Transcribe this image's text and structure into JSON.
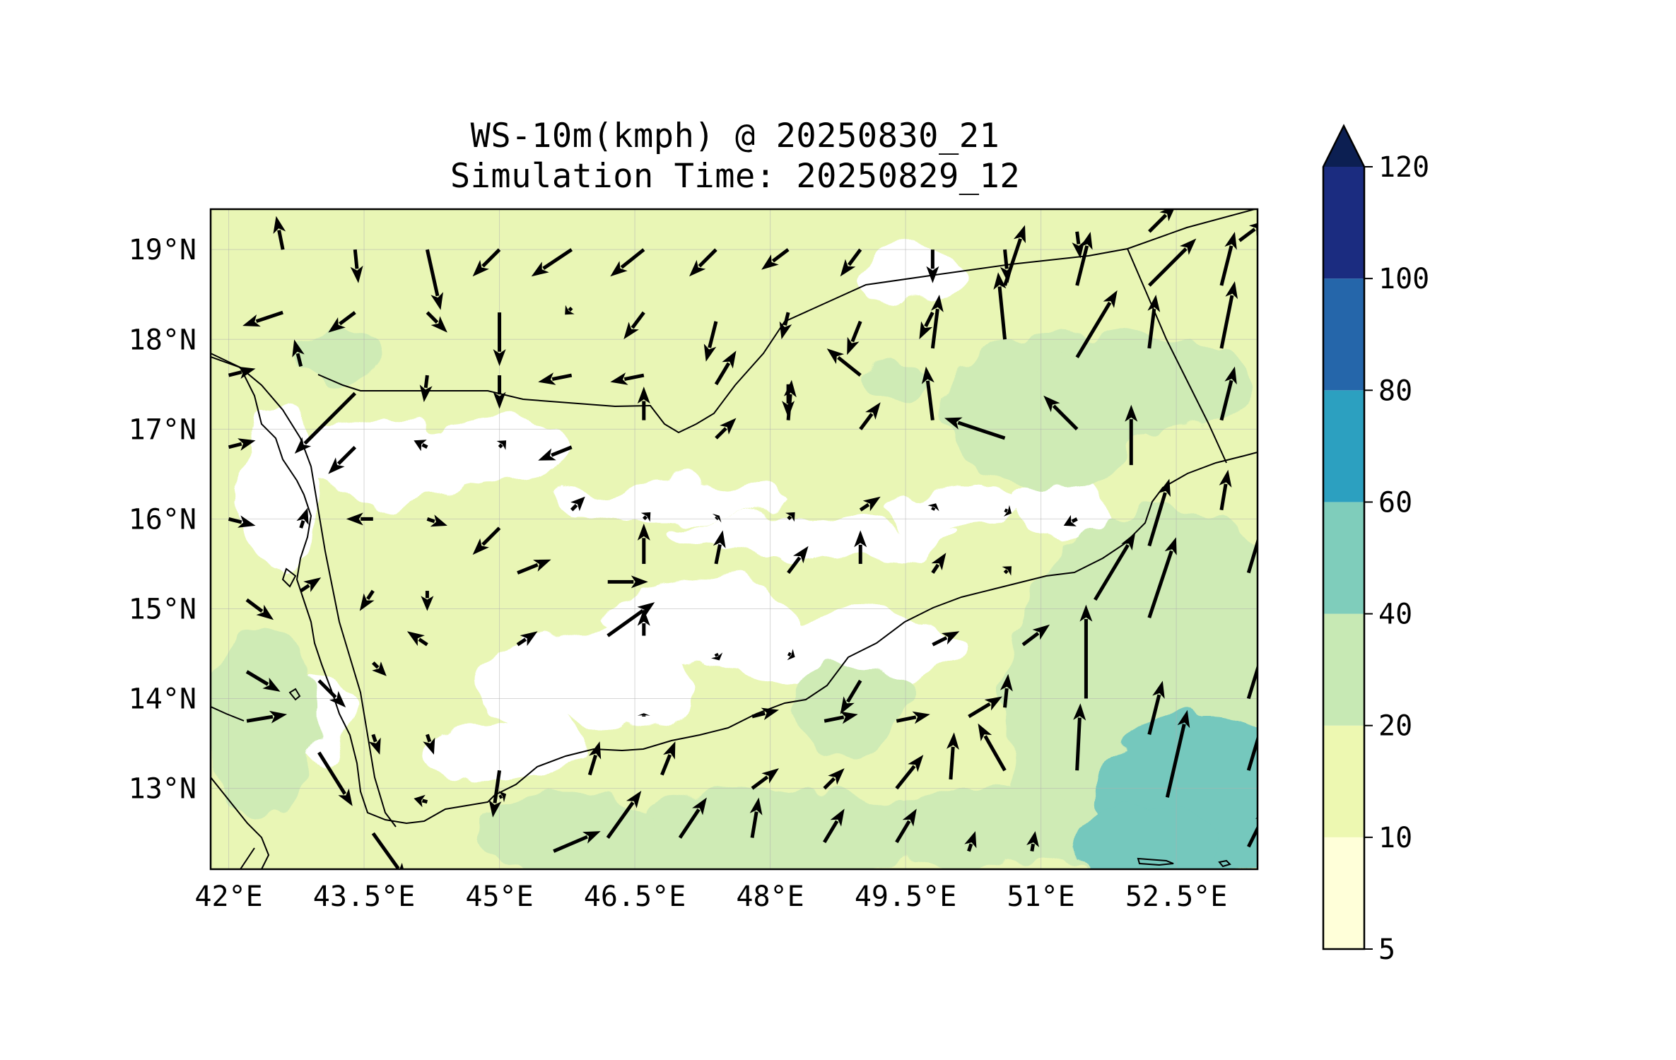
{
  "title": {
    "line1": "WS-10m(kmph) @ 20250830_21",
    "line2": "Simulation Time: 20250829_12"
  },
  "map": {
    "lon_range": [
      41.8,
      53.4
    ],
    "lat_range": [
      12.1,
      19.45
    ],
    "x_tick_labels": [
      {
        "value": 42.0,
        "label": "42°E"
      },
      {
        "value": 43.5,
        "label": "43.5°E"
      },
      {
        "value": 45.0,
        "label": "45°E"
      },
      {
        "value": 46.5,
        "label": "46.5°E"
      },
      {
        "value": 48.0,
        "label": "48°E"
      },
      {
        "value": 49.5,
        "label": "49.5°E"
      },
      {
        "value": 51.0,
        "label": "51°E"
      },
      {
        "value": 52.5,
        "label": "52.5°E"
      }
    ],
    "y_tick_labels": [
      {
        "value": 19,
        "label": "19°N"
      },
      {
        "value": 18,
        "label": "18°N"
      },
      {
        "value": 17,
        "label": "17°N"
      },
      {
        "value": 16,
        "label": "16°N"
      },
      {
        "value": 15,
        "label": "15°N"
      },
      {
        "value": 14,
        "label": "14°N"
      },
      {
        "value": 13,
        "label": "13°N"
      }
    ]
  },
  "colorbar": {
    "levels": [
      "5",
      "10",
      "20",
      "40",
      "60",
      "80",
      "100",
      "120"
    ],
    "colors": [
      "#ffffd9",
      "#edf8b1",
      "#c7e9b4",
      "#7fcdbb",
      "#2ca0c0",
      "#2566aa",
      "#1b2c80"
    ],
    "extend_color": "#0c1f52",
    "extend": "max"
  },
  "colors": {
    "land_light": "#f3fac6",
    "land_low": "#ffffff",
    "band_10_20": "#e9f6b5",
    "band_20_40": "#cfebb5",
    "band_40_60": "#74c8bd",
    "coast": "#000000",
    "arrow": "#000000"
  },
  "wind_vectors": [
    {
      "lon": 42.6,
      "lat": 19.0,
      "u": -0.1,
      "v": 0.5
    },
    {
      "lon": 43.4,
      "lat": 19.0,
      "u": 0.05,
      "v": -0.5
    },
    {
      "lon": 44.2,
      "lat": 19.0,
      "u": 0.2,
      "v": -0.9
    },
    {
      "lon": 45.0,
      "lat": 19.0,
      "u": -0.4,
      "v": -0.4
    },
    {
      "lon": 45.8,
      "lat": 19.0,
      "u": -0.6,
      "v": -0.4
    },
    {
      "lon": 46.6,
      "lat": 19.0,
      "u": -0.5,
      "v": -0.4
    },
    {
      "lon": 47.4,
      "lat": 19.0,
      "u": -0.4,
      "v": -0.4
    },
    {
      "lon": 48.2,
      "lat": 19.0,
      "u": -0.4,
      "v": -0.3
    },
    {
      "lon": 49.0,
      "lat": 19.0,
      "u": -0.3,
      "v": -0.4
    },
    {
      "lon": 49.8,
      "lat": 19.0,
      "u": 0.0,
      "v": -0.5
    },
    {
      "lon": 50.6,
      "lat": 19.0,
      "u": 0.05,
      "v": -0.5
    },
    {
      "lon": 51.4,
      "lat": 19.2,
      "u": 0.05,
      "v": -0.4
    },
    {
      "lon": 52.2,
      "lat": 19.2,
      "u": 0.4,
      "v": 0.4
    },
    {
      "lon": 53.2,
      "lat": 19.1,
      "u": 0.4,
      "v": 0.3
    },
    {
      "lon": 42.6,
      "lat": 18.3,
      "u": -0.6,
      "v": -0.2
    },
    {
      "lon": 43.4,
      "lat": 18.3,
      "u": -0.4,
      "v": -0.3
    },
    {
      "lon": 44.2,
      "lat": 18.3,
      "u": 0.3,
      "v": -0.3
    },
    {
      "lon": 45.0,
      "lat": 18.3,
      "u": 0.0,
      "v": -0.8
    },
    {
      "lon": 45.8,
      "lat": 18.35,
      "u": -0.1,
      "v": -0.1
    },
    {
      "lon": 46.6,
      "lat": 18.3,
      "u": -0.3,
      "v": -0.4
    },
    {
      "lon": 47.4,
      "lat": 18.2,
      "u": -0.15,
      "v": -0.6
    },
    {
      "lon": 48.2,
      "lat": 18.3,
      "u": -0.1,
      "v": -0.4
    },
    {
      "lon": 49.0,
      "lat": 18.2,
      "u": -0.2,
      "v": -0.5
    },
    {
      "lon": 49.8,
      "lat": 18.3,
      "u": -0.2,
      "v": -0.4
    },
    {
      "lon": 50.6,
      "lat": 18.6,
      "u": 0.3,
      "v": 0.9
    },
    {
      "lon": 51.4,
      "lat": 18.6,
      "u": 0.2,
      "v": 0.8
    },
    {
      "lon": 52.2,
      "lat": 18.6,
      "u": 0.7,
      "v": 0.7
    },
    {
      "lon": 53.0,
      "lat": 18.6,
      "u": 0.2,
      "v": 0.8
    },
    {
      "lon": 42.0,
      "lat": 17.6,
      "u": 0.4,
      "v": 0.1
    },
    {
      "lon": 42.8,
      "lat": 17.7,
      "u": -0.1,
      "v": 0.4
    },
    {
      "lon": 43.4,
      "lat": 17.4,
      "u": -0.9,
      "v": -0.9
    },
    {
      "lon": 44.2,
      "lat": 17.6,
      "u": -0.05,
      "v": -0.4
    },
    {
      "lon": 45.0,
      "lat": 17.6,
      "u": 0.0,
      "v": -0.5
    },
    {
      "lon": 45.8,
      "lat": 17.6,
      "u": -0.5,
      "v": -0.1
    },
    {
      "lon": 46.6,
      "lat": 17.6,
      "u": -0.5,
      "v": -0.1
    },
    {
      "lon": 47.4,
      "lat": 17.5,
      "u": 0.3,
      "v": 0.5
    },
    {
      "lon": 48.2,
      "lat": 17.5,
      "u": 0.0,
      "v": -0.5
    },
    {
      "lon": 49.0,
      "lat": 17.6,
      "u": -0.5,
      "v": 0.4
    },
    {
      "lon": 49.8,
      "lat": 17.9,
      "u": 0.1,
      "v": 0.8
    },
    {
      "lon": 50.6,
      "lat": 18.0,
      "u": -0.1,
      "v": 1.0
    },
    {
      "lon": 51.4,
      "lat": 17.8,
      "u": 0.6,
      "v": 1.0
    },
    {
      "lon": 52.2,
      "lat": 17.9,
      "u": 0.1,
      "v": 0.8
    },
    {
      "lon": 53.0,
      "lat": 17.9,
      "u": 0.2,
      "v": 1.0
    },
    {
      "lon": 42.0,
      "lat": 16.8,
      "u": 0.4,
      "v": 0.1
    },
    {
      "lon": 43.4,
      "lat": 16.8,
      "u": -0.4,
      "v": -0.4
    },
    {
      "lon": 44.2,
      "lat": 16.8,
      "u": -0.2,
      "v": 0.1
    },
    {
      "lon": 45.0,
      "lat": 16.8,
      "u": 0.1,
      "v": 0.1
    },
    {
      "lon": 45.8,
      "lat": 16.8,
      "u": -0.5,
      "v": -0.2
    },
    {
      "lon": 46.6,
      "lat": 17.1,
      "u": 0.0,
      "v": 0.5
    },
    {
      "lon": 47.4,
      "lat": 16.9,
      "u": 0.3,
      "v": 0.3
    },
    {
      "lon": 48.2,
      "lat": 17.1,
      "u": 0.05,
      "v": 0.6
    },
    {
      "lon": 49.0,
      "lat": 17.0,
      "u": 0.3,
      "v": 0.4
    },
    {
      "lon": 49.8,
      "lat": 17.1,
      "u": -0.1,
      "v": 0.8
    },
    {
      "lon": 50.6,
      "lat": 16.9,
      "u": -0.9,
      "v": 0.3
    },
    {
      "lon": 51.4,
      "lat": 17.0,
      "u": -0.5,
      "v": 0.5
    },
    {
      "lon": 52.0,
      "lat": 16.6,
      "u": 0.0,
      "v": 0.9
    },
    {
      "lon": 53.0,
      "lat": 17.1,
      "u": 0.2,
      "v": 0.8
    },
    {
      "lon": 42.0,
      "lat": 16.0,
      "u": 0.4,
      "v": -0.1
    },
    {
      "lon": 42.8,
      "lat": 15.9,
      "u": 0.1,
      "v": 0.3
    },
    {
      "lon": 43.6,
      "lat": 16.0,
      "u": -0.4,
      "v": 0.0
    },
    {
      "lon": 44.2,
      "lat": 16.0,
      "u": 0.3,
      "v": -0.1
    },
    {
      "lon": 45.0,
      "lat": 15.9,
      "u": -0.4,
      "v": -0.4
    },
    {
      "lon": 45.8,
      "lat": 16.1,
      "u": 0.2,
      "v": 0.2
    },
    {
      "lon": 46.6,
      "lat": 16.0,
      "u": 0.1,
      "v": 0.1
    },
    {
      "lon": 47.4,
      "lat": 16.0,
      "u": 0.05,
      "v": 0.05
    },
    {
      "lon": 48.2,
      "lat": 16.0,
      "u": 0.1,
      "v": 0.1
    },
    {
      "lon": 49.0,
      "lat": 16.1,
      "u": 0.3,
      "v": 0.2
    },
    {
      "lon": 49.8,
      "lat": 16.1,
      "u": 0.05,
      "v": 0.1
    },
    {
      "lon": 50.6,
      "lat": 16.1,
      "u": 0.1,
      "v": -0.05
    },
    {
      "lon": 51.4,
      "lat": 16.0,
      "u": -0.2,
      "v": -0.1
    },
    {
      "lon": 51.6,
      "lat": 15.1,
      "u": 0.6,
      "v": 1.0
    },
    {
      "lon": 52.2,
      "lat": 15.7,
      "u": 0.3,
      "v": 1.0
    },
    {
      "lon": 53.0,
      "lat": 16.1,
      "u": 0.1,
      "v": 0.6
    },
    {
      "lon": 42.2,
      "lat": 15.1,
      "u": 0.4,
      "v": -0.3
    },
    {
      "lon": 42.8,
      "lat": 15.2,
      "u": 0.3,
      "v": 0.2
    },
    {
      "lon": 43.6,
      "lat": 15.2,
      "u": -0.2,
      "v": -0.3
    },
    {
      "lon": 44.2,
      "lat": 15.2,
      "u": 0.0,
      "v": -0.3
    },
    {
      "lon": 45.2,
      "lat": 15.4,
      "u": 0.5,
      "v": 0.2
    },
    {
      "lon": 46.2,
      "lat": 15.3,
      "u": 0.6,
      "v": 0.0
    },
    {
      "lon": 46.6,
      "lat": 15.5,
      "u": 0.0,
      "v": 0.6
    },
    {
      "lon": 47.4,
      "lat": 15.5,
      "u": 0.1,
      "v": 0.5
    },
    {
      "lon": 48.2,
      "lat": 15.4,
      "u": 0.3,
      "v": 0.4
    },
    {
      "lon": 49.0,
      "lat": 15.5,
      "u": 0.0,
      "v": 0.5
    },
    {
      "lon": 49.8,
      "lat": 15.4,
      "u": 0.2,
      "v": 0.3
    },
    {
      "lon": 50.6,
      "lat": 15.4,
      "u": 0.1,
      "v": 0.1
    },
    {
      "lon": 52.2,
      "lat": 14.9,
      "u": 0.4,
      "v": 1.2
    },
    {
      "lon": 53.3,
      "lat": 15.4,
      "u": 0.3,
      "v": 1.0
    },
    {
      "lon": 42.2,
      "lat": 14.3,
      "u": 0.5,
      "v": -0.3
    },
    {
      "lon": 43.0,
      "lat": 14.2,
      "u": 0.4,
      "v": -0.4
    },
    {
      "lon": 43.6,
      "lat": 14.4,
      "u": 0.2,
      "v": -0.2
    },
    {
      "lon": 44.2,
      "lat": 14.6,
      "u": -0.3,
      "v": 0.2
    },
    {
      "lon": 45.2,
      "lat": 14.6,
      "u": 0.3,
      "v": 0.2
    },
    {
      "lon": 46.2,
      "lat": 14.7,
      "u": 0.7,
      "v": 0.5
    },
    {
      "lon": 46.6,
      "lat": 14.7,
      "u": 0.0,
      "v": 0.4
    },
    {
      "lon": 47.4,
      "lat": 14.5,
      "u": 0.05,
      "v": -0.1
    },
    {
      "lon": 48.2,
      "lat": 14.5,
      "u": 0.1,
      "v": -0.05
    },
    {
      "lon": 49.0,
      "lat": 14.2,
      "u": -0.3,
      "v": -0.5
    },
    {
      "lon": 49.8,
      "lat": 14.6,
      "u": 0.4,
      "v": 0.2
    },
    {
      "lon": 50.8,
      "lat": 14.6,
      "u": 0.4,
      "v": 0.3
    },
    {
      "lon": 51.5,
      "lat": 14.0,
      "u": 0.0,
      "v": 1.4
    },
    {
      "lon": 52.2,
      "lat": 13.6,
      "u": 0.2,
      "v": 0.8
    },
    {
      "lon": 53.3,
      "lat": 14.0,
      "u": 0.4,
      "v": 1.3
    },
    {
      "lon": 42.2,
      "lat": 13.75,
      "u": 0.6,
      "v": 0.1
    },
    {
      "lon": 43.0,
      "lat": 13.4,
      "u": 0.5,
      "v": -0.8
    },
    {
      "lon": 43.6,
      "lat": 13.6,
      "u": 0.1,
      "v": -0.3
    },
    {
      "lon": 44.2,
      "lat": 13.6,
      "u": 0.1,
      "v": -0.3
    },
    {
      "lon": 45.0,
      "lat": 13.2,
      "u": -0.1,
      "v": -0.7
    },
    {
      "lon": 46.6,
      "lat": 13.8,
      "u": 0.0,
      "v": 0.05
    },
    {
      "lon": 47.8,
      "lat": 13.8,
      "u": 0.4,
      "v": 0.1
    },
    {
      "lon": 48.6,
      "lat": 13.75,
      "u": 0.5,
      "v": 0.1
    },
    {
      "lon": 49.4,
      "lat": 13.75,
      "u": 0.5,
      "v": 0.1
    },
    {
      "lon": 50.2,
      "lat": 13.8,
      "u": 0.5,
      "v": 0.3
    },
    {
      "lon": 50.6,
      "lat": 13.9,
      "u": 0.05,
      "v": 0.5
    },
    {
      "lon": 51.4,
      "lat": 13.2,
      "u": 0.05,
      "v": 1.0
    },
    {
      "lon": 53.3,
      "lat": 13.2,
      "u": 0.3,
      "v": 1.0
    },
    {
      "lon": 43.6,
      "lat": 12.5,
      "u": 0.5,
      "v": -0.7
    },
    {
      "lon": 44.2,
      "lat": 12.85,
      "u": -0.2,
      "v": 0.05
    },
    {
      "lon": 45.0,
      "lat": 12.9,
      "u": 0.1,
      "v": 0.05
    },
    {
      "lon": 46.0,
      "lat": 13.15,
      "u": 0.15,
      "v": 0.5
    },
    {
      "lon": 46.8,
      "lat": 13.15,
      "u": 0.2,
      "v": 0.5
    },
    {
      "lon": 47.8,
      "lat": 13.0,
      "u": 0.4,
      "v": 0.3
    },
    {
      "lon": 48.6,
      "lat": 13.0,
      "u": 0.3,
      "v": 0.3
    },
    {
      "lon": 49.4,
      "lat": 13.0,
      "u": 0.4,
      "v": 0.5
    },
    {
      "lon": 50.0,
      "lat": 13.1,
      "u": 0.05,
      "v": 0.7
    },
    {
      "lon": 50.6,
      "lat": 13.2,
      "u": -0.4,
      "v": 0.7
    },
    {
      "lon": 45.6,
      "lat": 12.3,
      "u": 0.7,
      "v": 0.3
    },
    {
      "lon": 46.2,
      "lat": 12.45,
      "u": 0.5,
      "v": 0.7
    },
    {
      "lon": 47.0,
      "lat": 12.45,
      "u": 0.4,
      "v": 0.6
    },
    {
      "lon": 47.8,
      "lat": 12.45,
      "u": 0.1,
      "v": 0.6
    },
    {
      "lon": 48.6,
      "lat": 12.4,
      "u": 0.3,
      "v": 0.5
    },
    {
      "lon": 49.4,
      "lat": 12.4,
      "u": 0.3,
      "v": 0.5
    },
    {
      "lon": 50.2,
      "lat": 12.3,
      "u": 0.1,
      "v": 0.3
    },
    {
      "lon": 50.9,
      "lat": 12.3,
      "u": 0.05,
      "v": 0.3
    },
    {
      "lon": 52.4,
      "lat": 12.9,
      "u": 0.3,
      "v": 1.3
    },
    {
      "lon": 53.3,
      "lat": 12.35,
      "u": 0.3,
      "v": 0.6
    }
  ]
}
